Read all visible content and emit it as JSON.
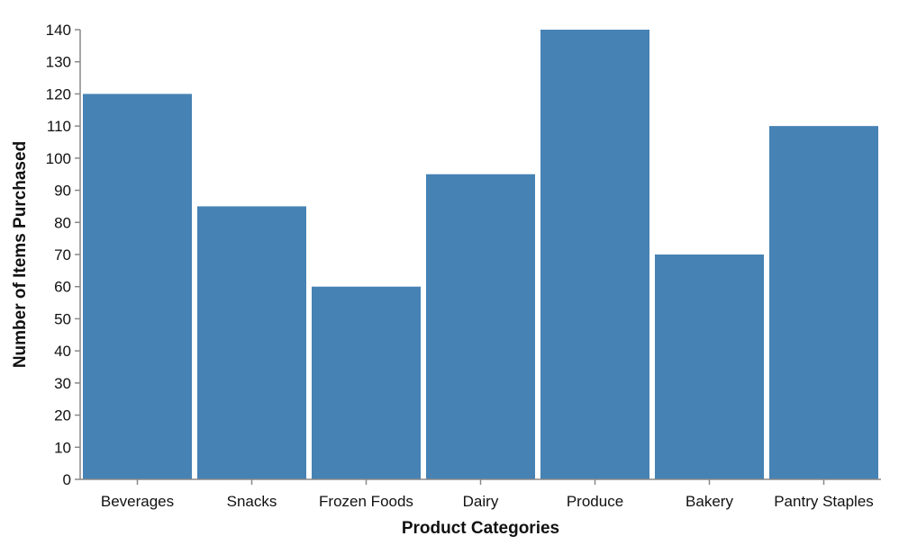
{
  "chart_data": {
    "type": "bar",
    "title": "",
    "xlabel": "Product Categories",
    "ylabel": "Number of Items Purchased",
    "categories": [
      "Beverages",
      "Snacks",
      "Frozen Foods",
      "Dairy",
      "Produce",
      "Bakery",
      "Pantry Staples"
    ],
    "values": [
      120,
      85,
      60,
      95,
      140,
      70,
      110
    ],
    "ylim": [
      0,
      140
    ],
    "yticks": [
      0,
      10,
      20,
      30,
      40,
      50,
      60,
      70,
      80,
      90,
      100,
      110,
      120,
      130,
      140
    ],
    "grid": false,
    "legend": "none",
    "bar_color": "#4682b4"
  }
}
